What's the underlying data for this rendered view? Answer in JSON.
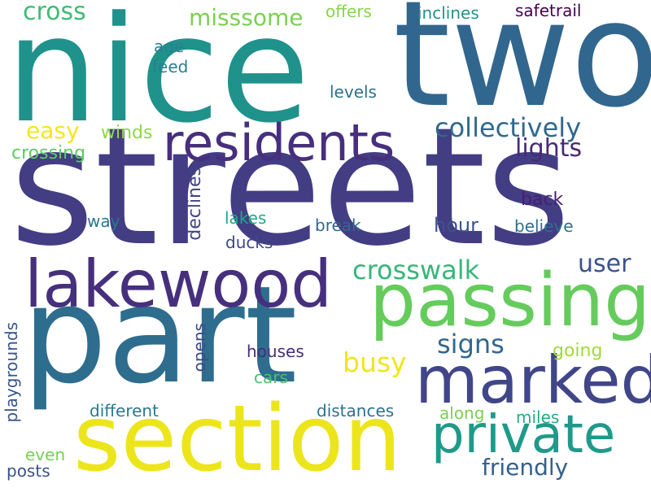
{
  "words": [
    {
      "text": "streets",
      "color": "#433d84"
    },
    {
      "text": "nice",
      "color": "#1f928c"
    },
    {
      "text": "two",
      "color": "#31668e"
    },
    {
      "text": "part",
      "color": "#2e6d8e"
    },
    {
      "text": "section",
      "color": "#ece51b"
    },
    {
      "text": "lakewood",
      "color": "#46307e"
    },
    {
      "text": "passing",
      "color": "#66cb5d"
    },
    {
      "text": "marked",
      "color": "#404688"
    },
    {
      "text": "private",
      "color": "#1f9a8a"
    },
    {
      "text": "residents",
      "color": "#472f7d"
    },
    {
      "text": "collectively",
      "color": "#30698e"
    },
    {
      "text": "crosswalk",
      "color": "#35b779"
    },
    {
      "text": "lights",
      "color": "#482878"
    },
    {
      "text": "signs",
      "color": "#31678e"
    },
    {
      "text": "user",
      "color": "#3b528b"
    },
    {
      "text": "busy",
      "color": "#f1e51d"
    },
    {
      "text": "friendly",
      "color": "#355f8d"
    },
    {
      "text": "misssome",
      "color": "#7ad151"
    },
    {
      "text": "cross",
      "color": "#3dbc74"
    },
    {
      "text": "easy",
      "color": "#f4e61e"
    },
    {
      "text": "safetrail",
      "color": "#440154"
    },
    {
      "text": "inclines",
      "color": "#21918c"
    },
    {
      "text": "offers",
      "color": "#86d549"
    },
    {
      "text": "age",
      "color": "#26828e"
    },
    {
      "text": "feed",
      "color": "#26818e"
    },
    {
      "text": "levels",
      "color": "#2c728e"
    },
    {
      "text": "winds",
      "color": "#8fd744"
    },
    {
      "text": "crossing",
      "color": "#5ec962"
    },
    {
      "text": "declines",
      "color": "#414487"
    },
    {
      "text": "back",
      "color": "#481f70"
    },
    {
      "text": "way",
      "color": "#2a788e"
    },
    {
      "text": "lakes",
      "color": "#22a884"
    },
    {
      "text": "ducks",
      "color": "#3f4788"
    },
    {
      "text": "break",
      "color": "#31688e"
    },
    {
      "text": "hour",
      "color": "#3b528b"
    },
    {
      "text": "believe",
      "color": "#2d708e"
    },
    {
      "text": "houses",
      "color": "#472d7b"
    },
    {
      "text": "opens",
      "color": "#3e4a89"
    },
    {
      "text": "going",
      "color": "#a0da39"
    },
    {
      "text": "cars",
      "color": "#4ac16d"
    },
    {
      "text": "playgrounds",
      "color": "#39558c"
    },
    {
      "text": "different",
      "color": "#2a788e"
    },
    {
      "text": "distances",
      "color": "#2c728e"
    },
    {
      "text": "along",
      "color": "#7ad151"
    },
    {
      "text": "miles",
      "color": "#25ab82"
    },
    {
      "text": "even",
      "color": "#75d054"
    },
    {
      "text": "posts",
      "color": "#3b528b"
    }
  ]
}
